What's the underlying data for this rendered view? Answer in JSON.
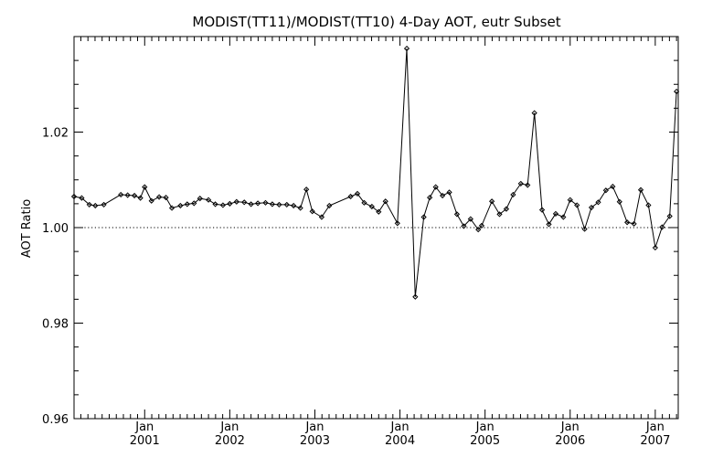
{
  "chart_data": {
    "type": "line",
    "title": "MODIST(TT11)/MODIST(TT10) 4-Day AOT, eutr Subset",
    "xlabel": "",
    "ylabel": "AOT Ratio",
    "x_unit": "decimal year",
    "xlim": [
      2000.17,
      2007.27
    ],
    "ylim": [
      0.96,
      1.04
    ],
    "y_ticks": [
      0.96,
      0.98,
      1.0,
      1.02
    ],
    "y_tick_labels": [
      "0.96",
      "0.98",
      "1.00",
      "1.02"
    ],
    "x_ticks": [
      2001.0,
      2002.0,
      2003.0,
      2004.0,
      2005.0,
      2006.0,
      2007.0
    ],
    "x_tick_month_label": "Jan",
    "x_tick_year_labels": [
      "2001",
      "2002",
      "2003",
      "2004",
      "2005",
      "2006",
      "2007"
    ],
    "reference_line": {
      "y": 1.0,
      "style": "dotted"
    },
    "grid": false,
    "series": [
      {
        "marker": "diamond",
        "x": [
          2000.17,
          2000.26,
          2000.35,
          2000.42,
          2000.52,
          2000.72,
          2000.8,
          2000.88,
          2000.95,
          2001.0,
          2001.08,
          2001.17,
          2001.25,
          2001.32,
          2001.42,
          2001.5,
          2001.58,
          2001.65,
          2001.75,
          2001.83,
          2001.92,
          2002.0,
          2002.08,
          2002.17,
          2002.25,
          2002.33,
          2002.42,
          2002.5,
          2002.58,
          2002.67,
          2002.75,
          2002.83,
          2002.9,
          2002.97,
          2003.08,
          2003.17,
          2003.42,
          2003.5,
          2003.58,
          2003.67,
          2003.75,
          2003.83,
          2003.97,
          2004.08,
          2004.18,
          2004.28,
          2004.35,
          2004.42,
          2004.5,
          2004.58,
          2004.67,
          2004.75,
          2004.83,
          2004.92,
          2004.96,
          2005.08,
          2005.17,
          2005.25,
          2005.33,
          2005.42,
          2005.5,
          2005.58,
          2005.67,
          2005.75,
          2005.83,
          2005.92,
          2006.0,
          2006.08,
          2006.17,
          2006.25,
          2006.33,
          2006.42,
          2006.5,
          2006.58,
          2006.67,
          2006.75,
          2006.83,
          2006.92,
          2007.0,
          2007.08,
          2007.17,
          2007.25
        ],
        "y": [
          1.0065,
          1.0062,
          1.0048,
          1.0046,
          1.0048,
          1.0069,
          1.0068,
          1.0067,
          1.0062,
          1.0085,
          1.0056,
          1.0064,
          1.0063,
          1.0041,
          1.0046,
          1.0049,
          1.0051,
          1.0061,
          1.0058,
          1.0049,
          1.0047,
          1.005,
          1.0054,
          1.0053,
          1.0049,
          1.0051,
          1.0052,
          1.0049,
          1.0048,
          1.0048,
          1.0046,
          1.0041,
          1.008,
          1.0034,
          1.0022,
          1.0046,
          1.0065,
          1.0071,
          1.0052,
          1.0044,
          1.0033,
          1.0055,
          1.0009,
          1.0375,
          0.9855,
          1.0022,
          1.0063,
          1.0085,
          1.0067,
          1.0074,
          1.0028,
          1.0003,
          1.0018,
          0.9996,
          1.0004,
          1.0055,
          1.0028,
          1.0039,
          1.0069,
          1.0092,
          1.0089,
          1.024,
          1.0037,
          1.0007,
          1.0029,
          1.0022,
          1.0058,
          1.0047,
          0.9997,
          1.0042,
          1.0053,
          1.0078,
          1.0086,
          1.0054,
          1.0011,
          1.0008,
          1.0079,
          1.0047,
          0.9958,
          1.0001,
          1.0024,
          1.0285
        ]
      }
    ]
  },
  "colors": {
    "line": "#000000",
    "marker": "#000000",
    "axis": "#000000",
    "background": "#ffffff"
  }
}
